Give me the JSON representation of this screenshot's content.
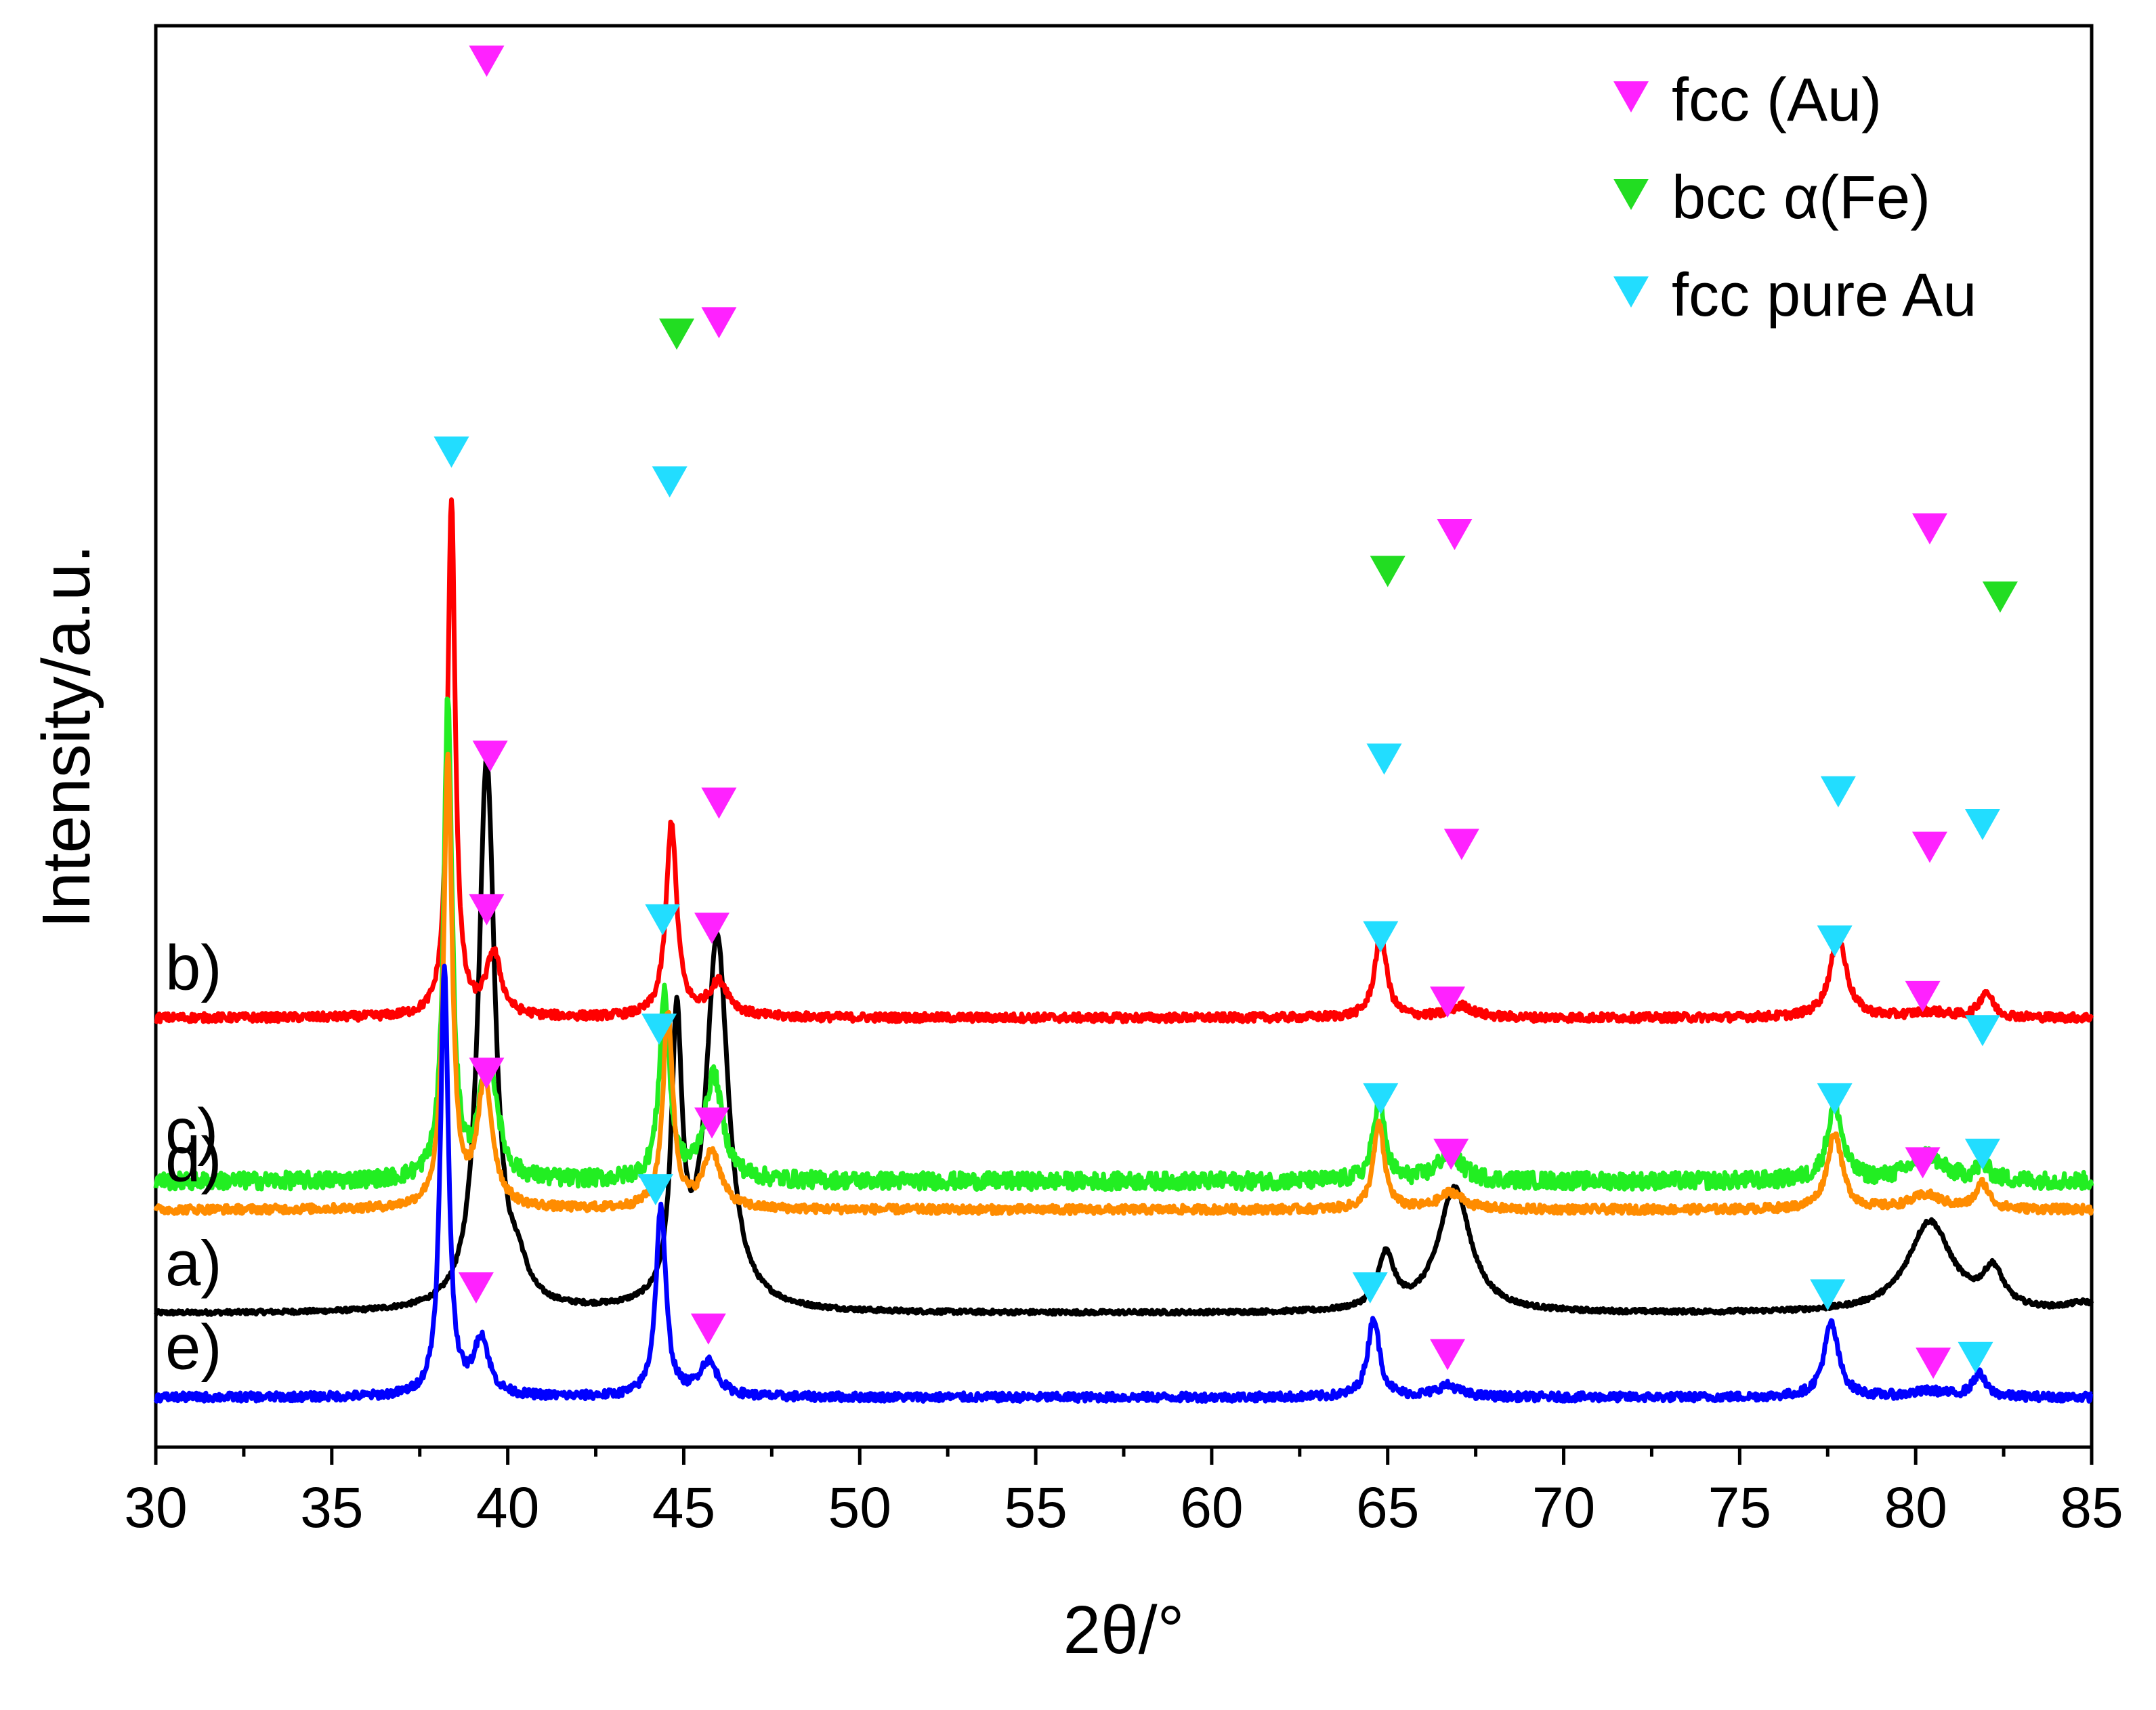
{
  "chart_data": {
    "type": "line",
    "title": "",
    "xlabel": "2θ/°",
    "ylabel": "Intensity/a.u.",
    "xlim": [
      30,
      85
    ],
    "ylim": [
      0,
      1
    ],
    "grid": false,
    "x_ticks": [
      30,
      35,
      40,
      45,
      50,
      55,
      60,
      65,
      70,
      75,
      80,
      85
    ],
    "y_ticks_shown": false,
    "legend": {
      "placement": "top-right",
      "entries": [
        {
          "key": "fcc_au",
          "label": "fcc (Au)",
          "marker": "down-triangle",
          "color": "#ff22ff"
        },
        {
          "key": "bcc_fe",
          "label": "bcc α(Fe)",
          "marker": "down-triangle",
          "color": "#22dd22"
        },
        {
          "key": "fcc_pure_au",
          "label": "fcc pure Au",
          "marker": "down-triangle",
          "color": "#22ddff"
        }
      ]
    },
    "series": [
      {
        "name": "a)",
        "color": "#000000",
        "baseline": 0.094,
        "peaks": [
          [
            39.4,
            0.388,
            0.28
          ],
          [
            40.3,
            0.02,
            0.3
          ],
          [
            44.8,
            0.194,
            0.18
          ],
          [
            45.95,
            0.262,
            0.38
          ],
          [
            64.95,
            0.038,
            0.28
          ],
          [
            66.9,
            0.088,
            0.55
          ],
          [
            80.4,
            0.064,
            0.75
          ],
          [
            82.2,
            0.026,
            0.35
          ],
          [
            84.8,
            0.006,
            0.6
          ]
        ],
        "noise": 0.0015,
        "markers": [
          {
            "x": 39.4,
            "y": 0.986,
            "type": "fcc_au"
          },
          {
            "x": 44.8,
            "y": 0.794,
            "type": "bcc_fe"
          },
          {
            "x": 46.0,
            "y": 0.802,
            "type": "fcc_au"
          },
          {
            "x": 65.0,
            "y": 0.627,
            "type": "bcc_fe"
          },
          {
            "x": 66.9,
            "y": 0.653,
            "type": "fcc_au"
          },
          {
            "x": 80.4,
            "y": 0.657,
            "type": "fcc_au"
          },
          {
            "x": 82.4,
            "y": 0.609,
            "type": "bcc_fe"
          }
        ]
      },
      {
        "name": "b)",
        "color": "#ff0000",
        "baseline": 0.302,
        "peaks": [
          [
            38.4,
            0.364,
            0.13
          ],
          [
            39.6,
            0.044,
            0.25
          ],
          [
            44.65,
            0.137,
            0.18
          ],
          [
            46.0,
            0.024,
            0.35
          ],
          [
            64.8,
            0.06,
            0.2
          ],
          [
            67.1,
            0.008,
            0.4
          ],
          [
            77.8,
            0.057,
            0.28
          ],
          [
            80.4,
            0.004,
            0.6
          ],
          [
            82.0,
            0.018,
            0.22
          ]
        ],
        "noise": 0.003,
        "markers": [
          {
            "x": 38.4,
            "y": 0.711,
            "type": "fcc_pure_au"
          },
          {
            "x": 39.5,
            "y": 0.497,
            "type": "fcc_au"
          },
          {
            "x": 44.6,
            "y": 0.69,
            "type": "fcc_pure_au"
          },
          {
            "x": 46.0,
            "y": 0.464,
            "type": "fcc_au"
          },
          {
            "x": 64.9,
            "y": 0.495,
            "type": "fcc_pure_au"
          },
          {
            "x": 67.1,
            "y": 0.435,
            "type": "fcc_au"
          },
          {
            "x": 77.8,
            "y": 0.472,
            "type": "fcc_pure_au"
          },
          {
            "x": 80.4,
            "y": 0.433,
            "type": "fcc_au"
          },
          {
            "x": 81.9,
            "y": 0.449,
            "type": "fcc_pure_au"
          }
        ]
      },
      {
        "name": "c)",
        "color": "#22ee22",
        "baseline": 0.187,
        "peaks": [
          [
            38.3,
            0.34,
            0.14
          ],
          [
            39.3,
            0.035,
            0.2
          ],
          [
            39.55,
            0.06,
            0.26
          ],
          [
            44.45,
            0.132,
            0.17
          ],
          [
            45.85,
            0.074,
            0.3
          ],
          [
            64.75,
            0.06,
            0.18
          ],
          [
            66.75,
            0.02,
            0.4
          ],
          [
            77.7,
            0.054,
            0.25
          ],
          [
            80.3,
            0.018,
            0.55
          ],
          [
            81.9,
            0.01,
            0.25
          ]
        ],
        "noise": 0.006,
        "markers": [
          {
            "x": 39.4,
            "y": 0.389,
            "type": "fcc_au"
          },
          {
            "x": 44.4,
            "y": 0.382,
            "type": "fcc_pure_au"
          },
          {
            "x": 45.8,
            "y": 0.376,
            "type": "fcc_au"
          },
          {
            "x": 64.8,
            "y": 0.37,
            "type": "fcc_pure_au"
          },
          {
            "x": 66.7,
            "y": 0.324,
            "type": "fcc_au"
          },
          {
            "x": 77.7,
            "y": 0.367,
            "type": "fcc_pure_au"
          },
          {
            "x": 80.2,
            "y": 0.328,
            "type": "fcc_au"
          },
          {
            "x": 81.9,
            "y": 0.304,
            "type": "fcc_pure_au"
          }
        ]
      },
      {
        "name": "d)",
        "color": "#ff8c00",
        "baseline": 0.167,
        "peaks": [
          [
            38.3,
            0.318,
            0.14
          ],
          [
            39.35,
            0.088,
            0.26
          ],
          [
            44.55,
            0.138,
            0.17
          ],
          [
            45.8,
            0.04,
            0.3
          ],
          [
            64.75,
            0.06,
            0.19
          ],
          [
            66.8,
            0.012,
            0.4
          ],
          [
            77.7,
            0.054,
            0.25
          ],
          [
            80.3,
            0.01,
            0.55
          ],
          [
            81.9,
            0.018,
            0.22
          ]
        ],
        "noise": 0.003,
        "markers": [
          {
            "x": 44.3,
            "y": 0.305,
            "type": "fcc_pure_au"
          },
          {
            "x": 39.4,
            "y": 0.274,
            "type": "fcc_au"
          },
          {
            "x": 45.8,
            "y": 0.239,
            "type": "fcc_au"
          },
          {
            "x": 64.8,
            "y": 0.256,
            "type": "fcc_pure_au"
          },
          {
            "x": 66.8,
            "y": 0.217,
            "type": "fcc_au"
          },
          {
            "x": 77.7,
            "y": 0.256,
            "type": "fcc_pure_au"
          },
          {
            "x": 80.2,
            "y": 0.211,
            "type": "fcc_au"
          },
          {
            "x": 81.9,
            "y": 0.217,
            "type": "fcc_pure_au"
          }
        ]
      },
      {
        "name": "e)",
        "color": "#0000ff",
        "baseline": 0.035,
        "peaks": [
          [
            38.2,
            0.3,
            0.14
          ],
          [
            39.25,
            0.04,
            0.25
          ],
          [
            44.35,
            0.134,
            0.17
          ],
          [
            45.7,
            0.024,
            0.32
          ],
          [
            64.6,
            0.056,
            0.2
          ],
          [
            66.7,
            0.008,
            0.4
          ],
          [
            77.6,
            0.052,
            0.25
          ],
          [
            80.4,
            0.004,
            0.6
          ],
          [
            81.8,
            0.016,
            0.22
          ]
        ],
        "noise": 0.003,
        "markers": [
          {
            "x": 44.2,
            "y": 0.192,
            "type": "fcc_pure_au"
          },
          {
            "x": 39.1,
            "y": 0.123,
            "type": "fcc_au"
          },
          {
            "x": 45.7,
            "y": 0.094,
            "type": "fcc_au"
          },
          {
            "x": 64.5,
            "y": 0.123,
            "type": "fcc_pure_au"
          },
          {
            "x": 66.7,
            "y": 0.076,
            "type": "fcc_au"
          },
          {
            "x": 77.5,
            "y": 0.118,
            "type": "fcc_pure_au"
          },
          {
            "x": 80.5,
            "y": 0.07,
            "type": "fcc_au"
          },
          {
            "x": 81.7,
            "y": 0.074,
            "type": "fcc_pure_au"
          }
        ]
      }
    ]
  }
}
